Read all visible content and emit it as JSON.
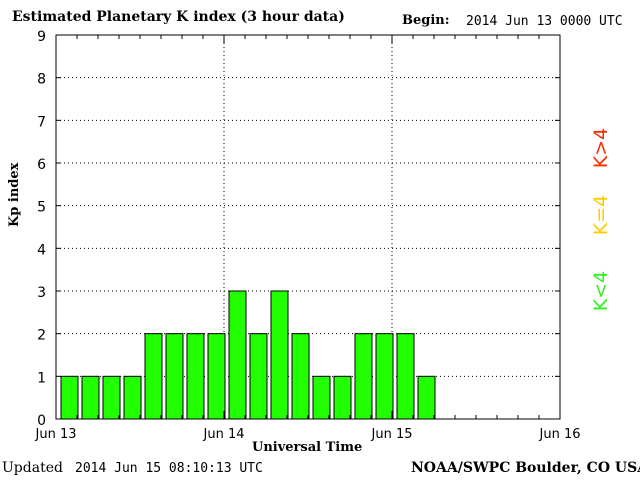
{
  "title": "Estimated Planetary K index (3 hour data)",
  "begin_label": "Begin:",
  "begin_value": "2014 Jun 13 0000 UTC",
  "updated_label": "Updated",
  "updated_value": "2014 Jun 15 08:10:13 UTC",
  "credit": "NOAA/SWPC Boulder, CO USA",
  "colors": {
    "bar": "#22ff00",
    "bar_edge": "#000000",
    "k_less": "#33ee22",
    "k_equal": "#ffcc00",
    "k_greater": "#ff2a00"
  },
  "legend": {
    "k_less": "K<4",
    "k_equal": "K=4",
    "k_greater": "K>4"
  },
  "chart_data": {
    "type": "bar",
    "title": "Estimated Planetary K index (3 hour data)",
    "xlabel": "Universal Time",
    "ylabel": "Kp index",
    "ylim": [
      0,
      9
    ],
    "yticks": [
      0,
      1,
      2,
      3,
      4,
      5,
      6,
      7,
      8,
      9
    ],
    "x_tick_labels": [
      "Jun 13",
      "Jun 14",
      "Jun 15",
      "Jun 16"
    ],
    "grid": "dotted at each day and each Kp integer",
    "interval_hours": 3,
    "categories": [
      "Jun 13 00",
      "Jun 13 03",
      "Jun 13 06",
      "Jun 13 09",
      "Jun 13 12",
      "Jun 13 15",
      "Jun 13 18",
      "Jun 13 21",
      "Jun 14 00",
      "Jun 14 03",
      "Jun 14 06",
      "Jun 14 09",
      "Jun 14 12",
      "Jun 14 15",
      "Jun 14 18",
      "Jun 14 21",
      "Jun 15 00",
      "Jun 15 03"
    ],
    "values": [
      1,
      1,
      1,
      1,
      2,
      2,
      2,
      2,
      3,
      2,
      3,
      2,
      1,
      1,
      2,
      2,
      2,
      1
    ]
  }
}
